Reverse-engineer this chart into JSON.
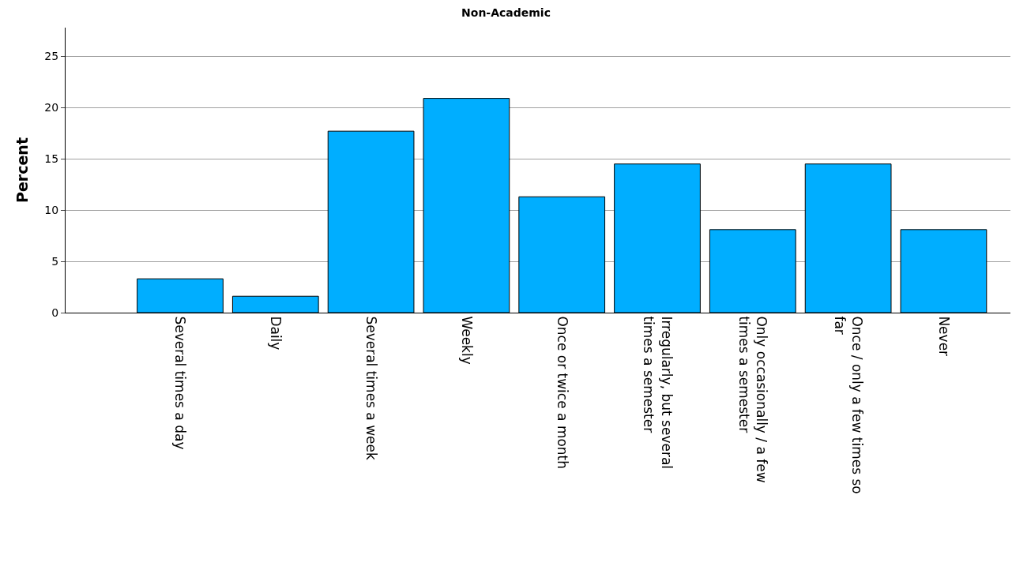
{
  "chart_data": {
    "type": "bar",
    "title": "Non-Academic",
    "ylabel": "Percent",
    "categories": [
      "Several times a day",
      "Daily",
      "Several times a week",
      "Weekly",
      "Once or twice a month",
      "Irregularly, but several times a semester",
      "Only occasionally / a few times a semester",
      "Once / only a few times so far",
      "Never"
    ],
    "values": [
      3.3,
      1.6,
      17.7,
      20.9,
      11.3,
      14.5,
      8.1,
      14.5,
      8.1
    ],
    "color": "#00aeff",
    "ylim": [
      0,
      27.8
    ],
    "yticks": [
      0,
      5,
      10,
      15,
      20,
      25
    ],
    "grid": "y"
  }
}
